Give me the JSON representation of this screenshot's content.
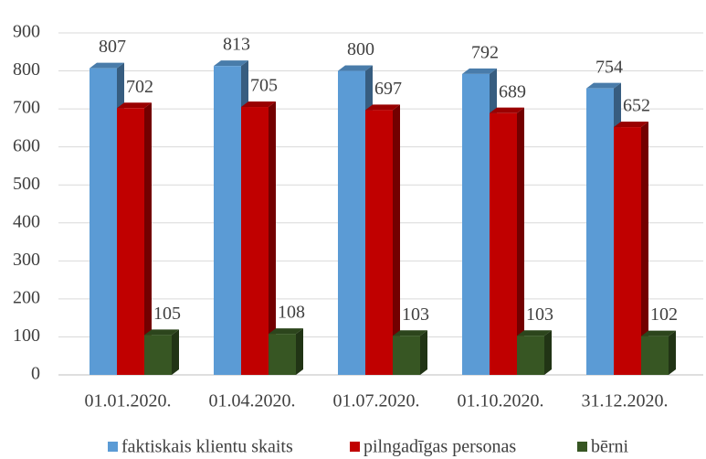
{
  "chart_data": {
    "type": "bar3d",
    "categories": [
      "01.01.2020.",
      "01.04.2020.",
      "01.07.2020.",
      "01.10.2020.",
      "31.12.2020."
    ],
    "series": [
      {
        "name": "faktiskais klientu skaits",
        "color": "#5b9bd5",
        "values": [
          807,
          813,
          800,
          792,
          754
        ]
      },
      {
        "name": "pilngadīgas personas",
        "color": "#c00000",
        "values": [
          702,
          705,
          697,
          689,
          652
        ]
      },
      {
        "name": "bērni",
        "color": "#375623",
        "values": [
          105,
          108,
          103,
          103,
          102
        ]
      }
    ],
    "ylim": [
      0,
      900
    ],
    "yticks": [
      0,
      100,
      200,
      300,
      400,
      500,
      600,
      700,
      800,
      900
    ],
    "grid": true,
    "legend": "bottom"
  }
}
